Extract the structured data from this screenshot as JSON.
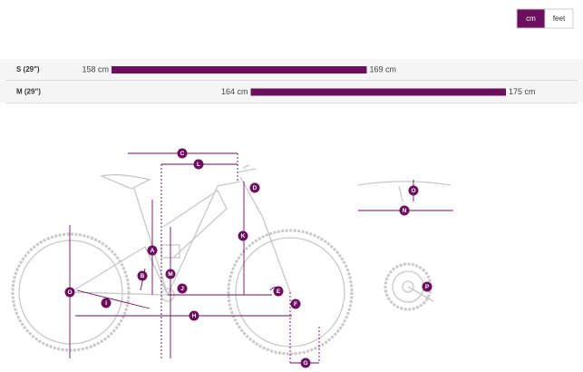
{
  "unit_toggle": {
    "options": [
      "cm",
      "feet"
    ],
    "selected": 0
  },
  "size_rows": [
    {
      "name": "S (29\")",
      "min": 158,
      "max": 169,
      "min_label": "158 cm",
      "max_label": "169 cm"
    },
    {
      "name": "M (29\")",
      "min": 164,
      "max": 175,
      "min_label": "164 cm",
      "max_label": "175 cm"
    }
  ],
  "geometry_labels": [
    "A",
    "B",
    "C",
    "D",
    "E",
    "F",
    "G",
    "H",
    "I",
    "J",
    "K",
    "L",
    "M",
    "N",
    "O",
    "O",
    "P"
  ]
}
